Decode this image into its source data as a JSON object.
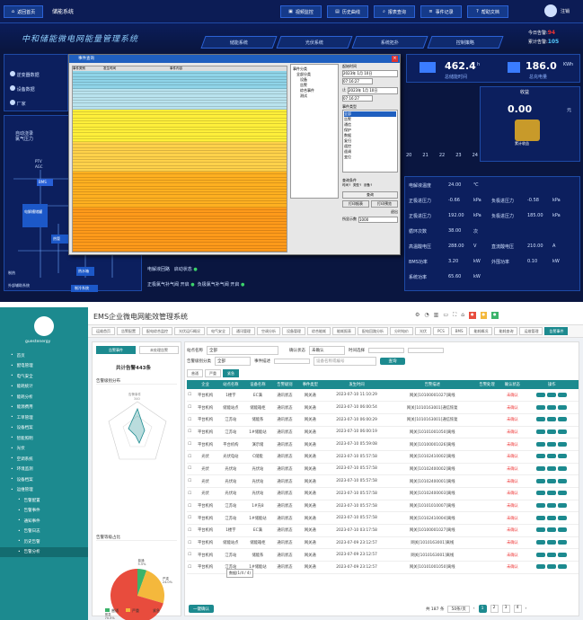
{
  "top": {
    "back": "返回首页",
    "module": "储能系统",
    "nav": [
      "视频监控",
      "历史曲线",
      "报表查询",
      "事件记录",
      "帮助文档"
    ],
    "logout": "注销",
    "title": "中和储能微电网能量管理系统",
    "tabs": [
      "储能系统",
      "光伏系统",
      "系统拓扑",
      "控制策略"
    ],
    "today_label": "今日告警:",
    "today_val": "94",
    "total_label": "累计告警:",
    "total_val": "105",
    "left_menu": [
      "逆变器数据",
      "设备数据",
      "厂家"
    ],
    "flow_labels": [
      "自动浇录",
      "氯气压力",
      "PTV",
      "AGC",
      "电网",
      "BMS",
      "电解槽储罐",
      "热管",
      "热水箱",
      "热能",
      "热管",
      "冷却",
      "风机",
      "制热",
      "帮助",
      "外部辅助系统",
      "帮助",
      "制冷系统"
    ],
    "metric1": "462.4",
    "metric1_unit": "h",
    "metric1_label": "总储能时间",
    "metric2": "186.0",
    "metric2_unit": "KWh",
    "metric2_label": "总充电量",
    "revenue_title": "收益",
    "revenue_val": "0.00",
    "revenue_unit": "元",
    "revenue_btn": "累计收益",
    "hours": [
      "20",
      "21",
      "22",
      "23",
      "24"
    ],
    "table": [
      [
        "电解液温度",
        "24.00",
        "℃",
        "",
        ""
      ],
      [
        "正极进压力",
        "-0.66",
        "kPa",
        "负极进压力",
        "-0.58"
      ],
      [
        "正极进压力",
        "192.00",
        "kPa",
        "负极进压力",
        "185.00"
      ],
      [
        "循环次数",
        "38.00",
        "次",
        "",
        ""
      ],
      [
        "高温酸电压",
        "288.00",
        "V",
        "直流酸电压",
        "210.00"
      ],
      [
        "BMS功率",
        "3.20",
        "kW",
        "外围功率",
        "0.10"
      ],
      [
        "系统功率",
        "65.60",
        "kW",
        "",
        ""
      ]
    ],
    "table_units2": [
      "",
      "kPa",
      "kPa",
      "",
      "A",
      "kW",
      ""
    ],
    "status": [
      [
        "电解液回路",
        "启动状态"
      ],
      [
        "正极氯气补气阀",
        "开启",
        "负极氯气补气阀",
        "开启"
      ]
    ]
  },
  "dialog": {
    "title": "事件查询",
    "cols": [
      "事件类别",
      "发生时间",
      "事件内容"
    ],
    "tree_title": "事件分类",
    "tree": [
      "全部分类",
      "设备",
      "告警",
      "综合事件",
      "测试"
    ],
    "start_label": "起始时间",
    "start_date": "2023年 1月 10日",
    "start_time": "07:16:27",
    "end_label": "止",
    "end_date": "2023年 1月 10日",
    "end_time": "07:16:27",
    "list_title": "事件类型",
    "list": [
      "全部",
      "告警",
      "通信",
      "保护",
      "数据",
      "复归",
      "遥控",
      "遥调",
      "变位"
    ],
    "query_label": "查询条件",
    "query_btns": [
      "时间↑",
      "类型↑",
      "设备↑"
    ],
    "btns": [
      "查询",
      "打印报表",
      "打印预览",
      "退出"
    ],
    "page_label": "所显示数",
    "page_val": "1000"
  },
  "bottom": {
    "app_title": "EMS企业微电网能效管理系统",
    "user": "guestenergy",
    "side": [
      "首页",
      "配电管理",
      "电气安全",
      "能耗统计",
      "能耗分析",
      "能源费用",
      "工单管理",
      "设备档案",
      "智能照明",
      "光伏",
      "空调系统",
      "环境监测",
      "设备档案",
      "运维管理",
      "告警配置",
      "告警事件",
      "通知事件",
      "告警日志",
      "历史告警",
      "告警分析"
    ],
    "tabs": [
      "运维首页",
      "告警配置",
      "配电综合监控",
      "光伏运行概况",
      "电气安全",
      "通讯管理",
      "空调分析",
      "设备管理",
      "综合能耗",
      "能耗报表",
      "配电回路分析",
      "分时电价",
      "光伏",
      "PCS",
      "BMS",
      "能耗概况",
      "能耗查询",
      "运维管理",
      "告警事件"
    ],
    "subtabs": [
      "告警事件",
      "未处理告警"
    ],
    "total_alarm": "共计告警443条",
    "radar_title": "告警级别分布",
    "radar_center": "告警事件",
    "radar_val": "340",
    "pie_title": "告警等级占比",
    "pie": [
      {
        "name": "普通",
        "value": 5.5,
        "pct": "5.5%",
        "color": "#3bb36a"
      },
      {
        "name": "严重",
        "value": 24.0,
        "pct": "24.0%",
        "color": "#f4b83c"
      },
      {
        "name": "紧急",
        "value": 70.5,
        "pct": "70.5%",
        "color": "#e84c3d"
      }
    ],
    "filters": {
      "org": "站点名称",
      "org_val": "全部",
      "confirm": "确认状态",
      "confirm_val": "未确认",
      "time": "时间选择",
      "type": "告警级别分类",
      "type_val": "全部",
      "event": "事件描述",
      "device": "设备名称或编号",
      "query": "查询"
    },
    "level_tabs": [
      "普通",
      "严重",
      "紧急"
    ],
    "cols": [
      "",
      "",
      "企业",
      "站点名称",
      "设备名称",
      "告警级别",
      "事件类型",
      "发生时间",
      "告警描述",
      "告警处理",
      "确认状态",
      "操作"
    ],
    "rows": [
      [
        "平台机构",
        "1楼字",
        "EC满",
        "通讯状态",
        "网关通",
        "2023-07-10 11:10:29",
        "网关[10100001027]离线",
        "",
        "未确认"
      ],
      [
        "平台机构",
        "储能站点",
        "储能箱柜",
        "通讯状态",
        "网关通",
        "2023-07-10 06:00:54",
        "网关[1010163001]通信恢复",
        "",
        "未确认"
      ],
      [
        "平台机构",
        "江苏站",
        "储能系",
        "通讯状态",
        "网关通",
        "2023-07-10 06:00:29",
        "网关[1010163001]通信恢复",
        "",
        "未确认"
      ],
      [
        "平台机构",
        "江苏站",
        "1#储能站",
        "通讯状态",
        "网关通",
        "2023-07-10 06:00:19",
        "网关[10101001050]离线",
        "",
        "未确认"
      ],
      [
        "平台机构",
        "平台机构",
        "演示储",
        "通讯状态",
        "网关通",
        "2023-07-10 05:59:08",
        "网关[10100001026]离线",
        "",
        "未确认"
      ],
      [
        "光伏",
        "光伏电站",
        "C储能",
        "通讯状态",
        "网关通",
        "2023-07-10 05:57:58",
        "网关[10102410002]离线",
        "",
        "未确认"
      ],
      [
        "光伏",
        "光伏站",
        "光伏站",
        "通讯状态",
        "网关通",
        "2023-07-10 05:57:58",
        "网关[10102400002]离线",
        "",
        "未确认"
      ],
      [
        "光伏",
        "光伏站",
        "光伏站",
        "通讯状态",
        "网关通",
        "2023-07-10 05:57:58",
        "网关[10102400001]离线",
        "",
        "未确认"
      ],
      [
        "光伏",
        "光伏站",
        "光伏站",
        "通讯状态",
        "网关通",
        "2023-07-10 05:57:58",
        "网关[10102400003]离线",
        "",
        "未确认"
      ],
      [
        "平台机构",
        "江苏站",
        "1#充8",
        "通讯状态",
        "网关通",
        "2023-07-10 05:57:58",
        "网关[10101010007]离线",
        "",
        "未确认"
      ],
      [
        "平台机构",
        "江苏站",
        "1#储能站",
        "通讯状态",
        "网关通",
        "2023-07-10 05:57:58",
        "网关[10102410004]离线",
        "",
        "未确认"
      ],
      [
        "平台机构",
        "1楼字",
        "EC满",
        "通讯状态",
        "网关通",
        "2023-07-10 03:17:58",
        "网关[10100001027]离线",
        "",
        "未确认"
      ],
      [
        "平台机构",
        "储能站点",
        "储能箱柜",
        "通讯状态",
        "网关通",
        "2023-07-09 23:12:57",
        "网关[1010163001]离线",
        "",
        "未确认"
      ],
      [
        "平台机构",
        "江苏站",
        "储能系",
        "通讯状态",
        "网关通",
        "2023-07-09 23:12:57",
        "网关[1010163001]离线",
        "",
        "未确认"
      ],
      [
        "平台机构",
        "江苏站",
        "1#储能站",
        "通讯状态",
        "网关通",
        "2023-07-09 23:12:57",
        "网关[10101001050]离线",
        "",
        "未确认"
      ]
    ],
    "tooltip": "数据(1/4 / 4)",
    "confirm_btn": "一键确认",
    "pager": {
      "total": "共 187 条",
      "size": "50条/页",
      "pages": [
        "1",
        "2",
        "3",
        "4"
      ]
    }
  },
  "colors": {
    "teal": "#1c8a8f",
    "navy": "#0a1640",
    "red": "#e33"
  }
}
